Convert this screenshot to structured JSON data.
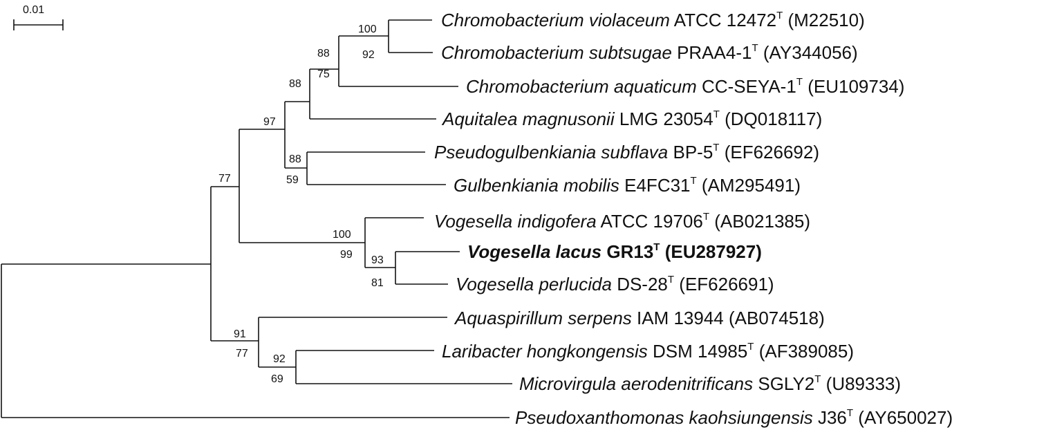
{
  "scale_bar": {
    "label": "0.01"
  },
  "taxa": [
    {
      "id": "t1",
      "genus_species": "Chromobacterium violaceum",
      "strain": "ATCC 12472",
      "type_strain": true,
      "accession": "(M22510)",
      "bold": false
    },
    {
      "id": "t2",
      "genus_species": "Chromobacterium subtsugae",
      "strain": "PRAA4-1",
      "type_strain": true,
      "accession": "(AY344056)",
      "bold": false
    },
    {
      "id": "t3",
      "genus_species": "Chromobacterium aquaticum",
      "strain": "CC-SEYA-1",
      "type_strain": true,
      "accession": "(EU109734)",
      "bold": false
    },
    {
      "id": "t4",
      "genus_species": "Aquitalea magnusonii",
      "strain": "LMG 23054",
      "type_strain": true,
      "accession": "(DQ018117)",
      "bold": false
    },
    {
      "id": "t5",
      "genus_species": "Pseudogulbenkiania subflava",
      "strain": "BP-5",
      "type_strain": true,
      "accession": "(EF626692)",
      "bold": false
    },
    {
      "id": "t6",
      "genus_species": "Gulbenkiania mobilis",
      "strain": "E4FC31",
      "type_strain": true,
      "accession": "(AM295491)",
      "bold": false
    },
    {
      "id": "t7",
      "genus_species": "Vogesella indigofera",
      "strain": "ATCC 19706",
      "type_strain": true,
      "accession": "(AB021385)",
      "bold": false
    },
    {
      "id": "t8",
      "genus_species": "Vogesella lacus",
      "strain": "GR13",
      "type_strain": true,
      "accession": "(EU287927)",
      "bold": true
    },
    {
      "id": "t9",
      "genus_species": "Vogesella perlucida",
      "strain": "DS-28",
      "type_strain": true,
      "accession": "(EF626691)",
      "bold": false
    },
    {
      "id": "t10",
      "genus_species": "Aquaspirillum serpens",
      "strain": "IAM 13944",
      "type_strain": false,
      "accession": "(AB074518)",
      "bold": false
    },
    {
      "id": "t11",
      "genus_species": "Laribacter hongkongensis",
      "strain": "DSM 14985",
      "type_strain": true,
      "accession": "(AF389085)",
      "bold": false
    },
    {
      "id": "t12",
      "genus_species": "Microvirgula aerodenitrificans",
      "strain": "SGLY2",
      "type_strain": true,
      "accession": "(U89333)",
      "bold": false
    },
    {
      "id": "t13",
      "genus_species": "Pseudoxanthomonas kaohsiungensis",
      "strain": "J36",
      "type_strain": true,
      "accession": "(AY650027)",
      "bold": false
    }
  ],
  "type_strain_mark": "T",
  "bootstrap": [
    {
      "node": "n-cv-cs",
      "value": "100"
    },
    {
      "node": "n-cv-cs",
      "value": "92"
    },
    {
      "node": "n-chromo",
      "value": "88"
    },
    {
      "node": "n-chromo",
      "value": "75"
    },
    {
      "node": "n-aquitalea",
      "value": "88"
    },
    {
      "node": "n-upper",
      "value": "97"
    },
    {
      "node": "n-pseudo-gulb",
      "value": "88"
    },
    {
      "node": "n-pseudo-gulb",
      "value": "59"
    },
    {
      "node": "n-ingroup-a",
      "value": "77"
    },
    {
      "node": "n-vogesella",
      "value": "100"
    },
    {
      "node": "n-vogesella",
      "value": "99"
    },
    {
      "node": "n-lacus-perl",
      "value": "93"
    },
    {
      "node": "n-lacus-perl",
      "value": "81"
    },
    {
      "node": "n-lower",
      "value": "91"
    },
    {
      "node": "n-lower",
      "value": "77"
    },
    {
      "node": "n-lari-micro",
      "value": "92"
    },
    {
      "node": "n-lari-micro",
      "value": "69"
    }
  ]
}
